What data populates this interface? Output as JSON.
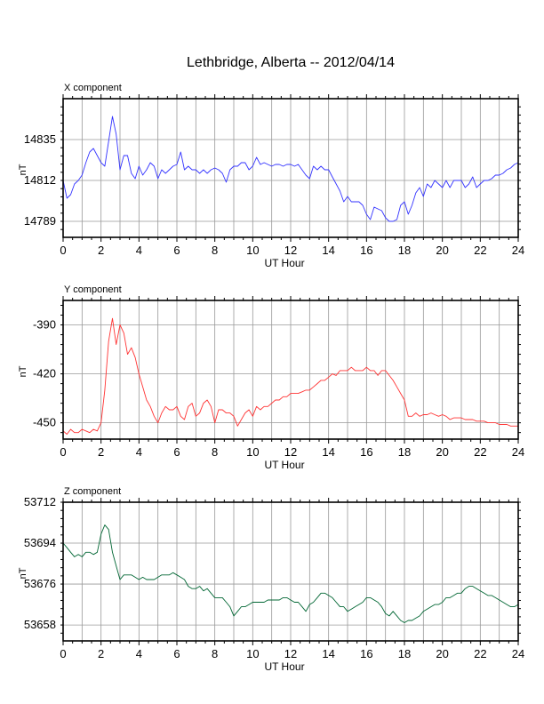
{
  "title": "Lethbridge, Alberta -- 2012/04/14",
  "chart_data": [
    {
      "type": "line",
      "panel_title": "X component",
      "xlabel": "UT Hour",
      "ylabel": "nT",
      "xlim": [
        0,
        24
      ],
      "ylim": [
        14780,
        14858
      ],
      "xticks": [
        0,
        2,
        4,
        6,
        8,
        10,
        12,
        14,
        16,
        18,
        20,
        22,
        24
      ],
      "yticks": [
        14789,
        14812,
        14835
      ],
      "grid": true,
      "color": "#3333ff",
      "series": [
        {
          "x": [
            0,
            0.2,
            0.4,
            0.6,
            0.8,
            1.0,
            1.2,
            1.4,
            1.6,
            1.8,
            2.0,
            2.2,
            2.4,
            2.6,
            2.8,
            3.0,
            3.2,
            3.4,
            3.6,
            3.8,
            4.0,
            4.2,
            4.4,
            4.6,
            4.8,
            5.0,
            5.2,
            5.4,
            5.6,
            5.8,
            6.0,
            6.2,
            6.4,
            6.6,
            6.8,
            7.0,
            7.2,
            7.4,
            7.6,
            7.8,
            8.0,
            8.2,
            8.4,
            8.6,
            8.8,
            9.0,
            9.2,
            9.4,
            9.6,
            9.8,
            10.0,
            10.2,
            10.4,
            10.6,
            10.8,
            11.0,
            11.2,
            11.4,
            11.6,
            11.8,
            12.0,
            12.2,
            12.4,
            12.6,
            12.8,
            13.0,
            13.2,
            13.4,
            13.6,
            13.8,
            14.0,
            14.2,
            14.4,
            14.6,
            14.8,
            15.0,
            15.2,
            15.4,
            15.6,
            15.8,
            16.0,
            16.2,
            16.4,
            16.6,
            16.8,
            17.0,
            17.2,
            17.4,
            17.6,
            17.8,
            18.0,
            18.2,
            18.4,
            18.6,
            18.8,
            19.0,
            19.2,
            19.4,
            19.6,
            19.8,
            20.0,
            20.2,
            20.4,
            20.6,
            20.8,
            21.0,
            21.2,
            21.4,
            21.6,
            21.8,
            22.0,
            22.2,
            22.4,
            22.6,
            22.8,
            23.0,
            23.2,
            23.4,
            23.6,
            23.8,
            24.0
          ],
          "y": [
            14812,
            14802,
            14804,
            14810,
            14812,
            14815,
            14822,
            14828,
            14830,
            14826,
            14822,
            14820,
            14834,
            14848,
            14838,
            14818,
            14826,
            14826,
            14816,
            14813,
            14820,
            14815,
            14818,
            14822,
            14820,
            14813,
            14818,
            14816,
            14818,
            14820,
            14821,
            14828,
            14818,
            14820,
            14818,
            14818,
            14816,
            14818,
            14816,
            14818,
            14819,
            14818,
            14816,
            14811,
            14818,
            14820,
            14820,
            14822,
            14822,
            14818,
            14820,
            14825,
            14821,
            14822,
            14821,
            14820,
            14821,
            14821,
            14820,
            14821,
            14821,
            14820,
            14821,
            14818,
            14815,
            14813,
            14820,
            14818,
            14820,
            14818,
            14818,
            14814,
            14810,
            14806,
            14800,
            14803,
            14800,
            14800,
            14800,
            14798,
            14793,
            14790,
            14797,
            14796,
            14795,
            14791,
            14789,
            14789,
            14790,
            14798,
            14800,
            14793,
            14798,
            14805,
            14808,
            14803,
            14810,
            14808,
            14812,
            14810,
            14808,
            14812,
            14808,
            14812,
            14812,
            14812,
            14808,
            14810,
            14814,
            14808,
            14810,
            14812,
            14812,
            14813,
            14815,
            14815,
            14816,
            14818,
            14819,
            14821,
            14822
          ]
        }
      ]
    },
    {
      "type": "line",
      "panel_title": "Y component",
      "xlabel": "UT Hour",
      "ylabel": "nT",
      "xlim": [
        0,
        24
      ],
      "ylim": [
        -460,
        -375
      ],
      "xticks": [
        0,
        2,
        4,
        6,
        8,
        10,
        12,
        14,
        16,
        18,
        20,
        22,
        24
      ],
      "yticks": [
        -450,
        -420,
        -390
      ],
      "grid": true,
      "color": "#ff3333",
      "series": [
        {
          "x": [
            0,
            0.2,
            0.4,
            0.6,
            0.8,
            1.0,
            1.2,
            1.4,
            1.6,
            1.8,
            2.0,
            2.2,
            2.4,
            2.6,
            2.8,
            3.0,
            3.2,
            3.4,
            3.6,
            3.8,
            4.0,
            4.2,
            4.4,
            4.6,
            4.8,
            5.0,
            5.2,
            5.4,
            5.6,
            5.8,
            6.0,
            6.2,
            6.4,
            6.6,
            6.8,
            7.0,
            7.2,
            7.4,
            7.6,
            7.8,
            8.0,
            8.2,
            8.4,
            8.6,
            8.8,
            9.0,
            9.2,
            9.4,
            9.6,
            9.8,
            10.0,
            10.2,
            10.4,
            10.6,
            10.8,
            11.0,
            11.2,
            11.4,
            11.6,
            11.8,
            12.0,
            12.2,
            12.4,
            12.6,
            12.8,
            13.0,
            13.2,
            13.4,
            13.6,
            13.8,
            14.0,
            14.2,
            14.4,
            14.6,
            14.8,
            15.0,
            15.2,
            15.4,
            15.6,
            15.8,
            16.0,
            16.2,
            16.4,
            16.6,
            16.8,
            17.0,
            17.2,
            17.4,
            17.6,
            17.8,
            18.0,
            18.2,
            18.4,
            18.6,
            18.8,
            19.0,
            19.2,
            19.4,
            19.6,
            19.8,
            20.0,
            20.2,
            20.4,
            20.6,
            20.8,
            21.0,
            21.2,
            21.4,
            21.6,
            21.8,
            22.0,
            22.2,
            22.4,
            22.6,
            22.8,
            23.0,
            23.2,
            23.4,
            23.6,
            23.8,
            24.0
          ],
          "y": [
            -455,
            -457,
            -454,
            -456,
            -456,
            -454,
            -455,
            -456,
            -454,
            -455,
            -450,
            -430,
            -400,
            -386,
            -402,
            -390,
            -395,
            -408,
            -404,
            -410,
            -420,
            -428,
            -436,
            -440,
            -446,
            -450,
            -444,
            -440,
            -442,
            -442,
            -440,
            -446,
            -448,
            -440,
            -438,
            -446,
            -444,
            -438,
            -436,
            -440,
            -450,
            -442,
            -442,
            -444,
            -444,
            -446,
            -452,
            -448,
            -444,
            -442,
            -446,
            -440,
            -442,
            -440,
            -440,
            -438,
            -436,
            -436,
            -434,
            -434,
            -432,
            -432,
            -432,
            -431,
            -430,
            -430,
            -428,
            -426,
            -424,
            -424,
            -422,
            -420,
            -421,
            -418,
            -418,
            -418,
            -416,
            -418,
            -418,
            -418,
            -416,
            -418,
            -418,
            -421,
            -418,
            -418,
            -421,
            -424,
            -428,
            -432,
            -436,
            -446,
            -446,
            -444,
            -446,
            -445,
            -445,
            -444,
            -445,
            -446,
            -445,
            -446,
            -448,
            -447,
            -447,
            -447,
            -448,
            -448,
            -448,
            -449,
            -449,
            -449,
            -450,
            -450,
            -450,
            -451,
            -451,
            -451,
            -452,
            -452,
            -452
          ]
        }
      ]
    },
    {
      "type": "line",
      "panel_title": "Z component",
      "xlabel": "UT Hour",
      "ylabel": "nT",
      "xlim": [
        0,
        24
      ],
      "ylim": [
        53651,
        53712
      ],
      "xticks": [
        0,
        2,
        4,
        6,
        8,
        10,
        12,
        14,
        16,
        18,
        20,
        22,
        24
      ],
      "yticks": [
        53658,
        53676,
        53694,
        53712
      ],
      "grid": true,
      "color": "#006633",
      "series": [
        {
          "x": [
            0,
            0.2,
            0.4,
            0.6,
            0.8,
            1.0,
            1.2,
            1.4,
            1.6,
            1.8,
            2.0,
            2.2,
            2.4,
            2.6,
            2.8,
            3.0,
            3.2,
            3.4,
            3.6,
            3.8,
            4.0,
            4.2,
            4.4,
            4.6,
            4.8,
            5.0,
            5.2,
            5.4,
            5.6,
            5.8,
            6.0,
            6.2,
            6.4,
            6.6,
            6.8,
            7.0,
            7.2,
            7.4,
            7.6,
            7.8,
            8.0,
            8.2,
            8.4,
            8.6,
            8.8,
            9.0,
            9.2,
            9.4,
            9.6,
            9.8,
            10.0,
            10.2,
            10.4,
            10.6,
            10.8,
            11.0,
            11.2,
            11.4,
            11.6,
            11.8,
            12.0,
            12.2,
            12.4,
            12.6,
            12.8,
            13.0,
            13.2,
            13.4,
            13.6,
            13.8,
            14.0,
            14.2,
            14.4,
            14.6,
            14.8,
            15.0,
            15.2,
            15.4,
            15.6,
            15.8,
            16.0,
            16.2,
            16.4,
            16.6,
            16.8,
            17.0,
            17.2,
            17.4,
            17.6,
            17.8,
            18.0,
            18.2,
            18.4,
            18.6,
            18.8,
            19.0,
            19.2,
            19.4,
            19.6,
            19.8,
            20.0,
            20.2,
            20.4,
            20.6,
            20.8,
            21.0,
            21.2,
            21.4,
            21.6,
            21.8,
            22.0,
            22.2,
            22.4,
            22.6,
            22.8,
            23.0,
            23.2,
            23.4,
            23.6,
            23.8,
            24.0
          ],
          "y": [
            53694,
            53692,
            53690,
            53688,
            53689,
            53688,
            53690,
            53690,
            53689,
            53690,
            53698,
            53702,
            53700,
            53690,
            53684,
            53678,
            53680,
            53680,
            53680,
            53679,
            53678,
            53679,
            53678,
            53678,
            53678,
            53679,
            53680,
            53680,
            53680,
            53681,
            53680,
            53679,
            53678,
            53675,
            53674,
            53674,
            53675,
            53673,
            53674,
            53672,
            53670,
            53670,
            53670,
            53668,
            53666,
            53662,
            53664,
            53666,
            53666,
            53667,
            53668,
            53668,
            53668,
            53668,
            53669,
            53669,
            53669,
            53669,
            53670,
            53670,
            53669,
            53668,
            53668,
            53666,
            53664,
            53667,
            53668,
            53670,
            53672,
            53672,
            53671,
            53670,
            53668,
            53666,
            53666,
            53664,
            53665,
            53666,
            53667,
            53668,
            53670,
            53670,
            53669,
            53668,
            53666,
            53663,
            53662,
            53664,
            53662,
            53660,
            53659,
            53660,
            53660,
            53661,
            53662,
            53664,
            53665,
            53666,
            53667,
            53667,
            53668,
            53670,
            53670,
            53671,
            53672,
            53672,
            53674,
            53675,
            53675,
            53674,
            53673,
            53672,
            53671,
            53671,
            53670,
            53669,
            53668,
            53667,
            53666,
            53666,
            53667
          ]
        }
      ]
    }
  ]
}
